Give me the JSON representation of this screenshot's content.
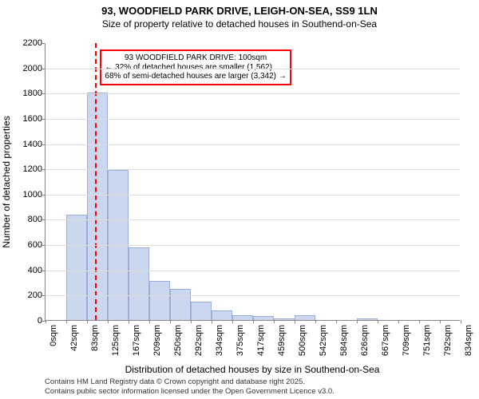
{
  "title": "93, WOODFIELD PARK DRIVE, LEIGH-ON-SEA, SS9 1LN",
  "subtitle": "Size of property relative to detached houses in Southend-on-Sea",
  "ylabel": "Number of detached properties",
  "xlabel": "Distribution of detached houses by size in Southend-on-Sea",
  "chart": {
    "type": "histogram",
    "bar_color": "#cad7ee",
    "bar_border": "#9aaed6",
    "background": "#ffffff",
    "grid_color": "#dddddd",
    "axis_color": "#888888",
    "y": {
      "min": 0,
      "max": 2200,
      "ticks": [
        0,
        200,
        400,
        600,
        800,
        1000,
        1200,
        1400,
        1600,
        1800,
        2000,
        2200
      ]
    },
    "x": {
      "ticks": [
        "0sqm",
        "42sqm",
        "83sqm",
        "125sqm",
        "167sqm",
        "209sqm",
        "250sqm",
        "292sqm",
        "334sqm",
        "375sqm",
        "417sqm",
        "459sqm",
        "500sqm",
        "542sqm",
        "584sqm",
        "626sqm",
        "667sqm",
        "709sqm",
        "751sqm",
        "792sqm",
        "834sqm"
      ]
    },
    "bars": [
      0,
      835,
      1800,
      1190,
      575,
      310,
      245,
      145,
      75,
      35,
      30,
      15,
      35,
      0,
      0,
      15,
      0,
      0,
      0,
      0
    ]
  },
  "reference": {
    "pos_bin": 2.4,
    "color": "#ff0000",
    "dash_width": 2,
    "label_main": "93 WOODFIELD PARK DRIVE: 100sqm",
    "label_line2": "← 32% of detached houses are smaller (1,562)",
    "label_line3": "68% of semi-detached houses are larger (3,342) →"
  },
  "footer": {
    "line1": "Contains HM Land Registry data © Crown copyright and database right 2025.",
    "line2": "Contains public sector information licensed under the Open Government Licence v3.0."
  },
  "font": {
    "title_size": 13,
    "subtitle_size": 12,
    "axis_label_size": 12,
    "tick_size": 11,
    "callout_size": 10,
    "footer_size": 9.5
  }
}
